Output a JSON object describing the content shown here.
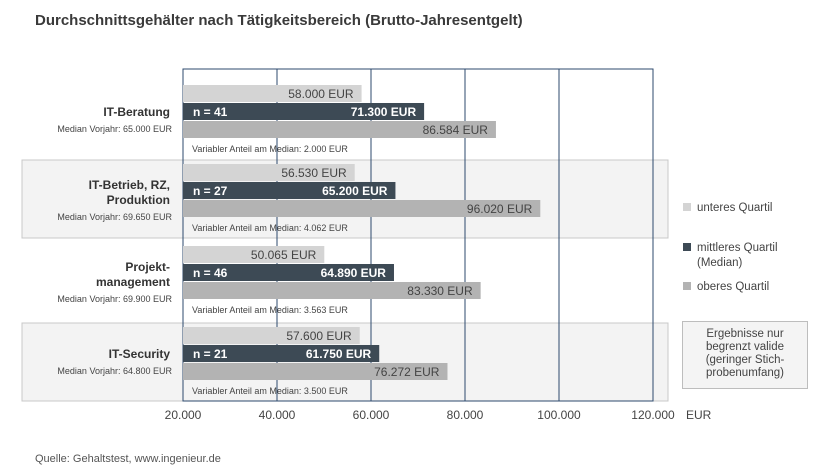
{
  "title": "Durchschnittsgehälter nach Tätigkeitsbereich (Brutto-Jahresentgelt)",
  "source": "Quelle: Gehaltstest, www.ingenieur.de",
  "legend": [
    {
      "label": "unteres Quartil",
      "color": "#d4d4d4"
    },
    {
      "label": "mittleres Quartil (Median)",
      "color": "#3d4a55"
    },
    {
      "label": "oberes Quartil",
      "color": "#b3b3b3"
    }
  ],
  "note": "Ergebnisse nur begrenzt valide (geringer Stich-probenumfang)",
  "colors": {
    "lower": "#d4d4d4",
    "median": "#3d4a55",
    "upper": "#b3b3b3",
    "grid": "#2c4a6e",
    "band": "#f3f3f3"
  },
  "chart_data": {
    "type": "bar",
    "orientation": "horizontal",
    "xlim": [
      20000,
      120000
    ],
    "xticks": [
      20000,
      40000,
      60000,
      80000,
      100000,
      120000
    ],
    "xtick_labels": [
      "20.000",
      "40.000",
      "60.000",
      "80.000",
      "100.000",
      "120.000"
    ],
    "xunit": "EUR",
    "series_names": [
      "unteres Quartil",
      "mittleres Quartil (Median)",
      "oberes Quartil"
    ],
    "categories": [
      {
        "name_lines": [
          "IT-Beratung"
        ],
        "prev_median": "Median Vorjahr: 65.000 EUR",
        "n_label": "n = 41",
        "lower": 58000,
        "lower_label": "58.000 EUR",
        "median": 71300,
        "median_label": "71.300 EUR",
        "upper": 86584,
        "upper_label": "86.584 EUR",
        "variable": "Variabler Anteil am Median: 2.000 EUR",
        "shaded": false
      },
      {
        "name_lines": [
          "IT-Betrieb, RZ,",
          "Produktion"
        ],
        "prev_median": "Median Vorjahr: 69.650 EUR",
        "n_label": "n = 27",
        "lower": 56530,
        "lower_label": "56.530 EUR",
        "median": 65200,
        "median_label": "65.200 EUR",
        "upper": 96020,
        "upper_label": "96.020 EUR",
        "variable": "Variabler Anteil am Median: 4.062 EUR",
        "shaded": true
      },
      {
        "name_lines": [
          "Projekt-",
          "management"
        ],
        "prev_median": "Median Vorjahr: 69.900 EUR",
        "n_label": "n = 46",
        "lower": 50065,
        "lower_label": "50.065 EUR",
        "median": 64890,
        "median_label": "64.890 EUR",
        "upper": 83330,
        "upper_label": "83.330 EUR",
        "variable": "Variabler Anteil am Median: 3.563 EUR",
        "shaded": false
      },
      {
        "name_lines": [
          "IT-Security"
        ],
        "prev_median": "Median Vorjahr: 64.800 EUR",
        "n_label": "n = 21",
        "lower": 57600,
        "lower_label": "57.600 EUR",
        "median": 61750,
        "median_label": "61.750 EUR",
        "upper": 76272,
        "upper_label": "76.272 EUR",
        "variable": "Variabler Anteil am Median: 3.500 EUR",
        "shaded": true
      }
    ]
  }
}
